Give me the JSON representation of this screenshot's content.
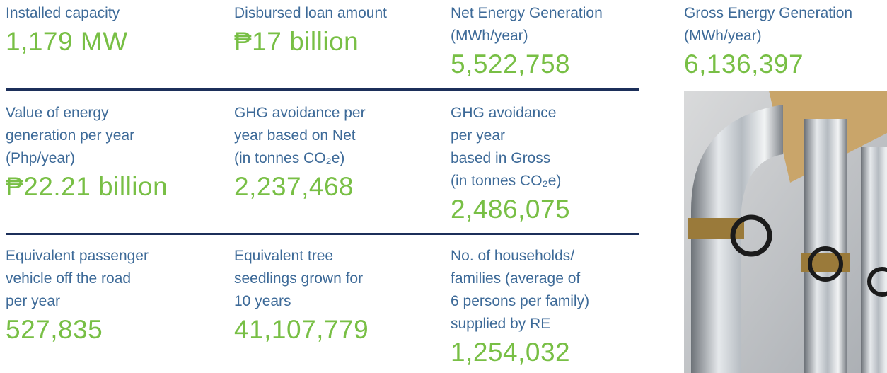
{
  "rows": [
    [
      {
        "label": [
          "Installed capacity"
        ],
        "value": "1,179 MW"
      },
      {
        "label": [
          "Disbursed loan amount"
        ],
        "value": "₱17 billion"
      },
      {
        "label": [
          "Net Energy Generation",
          "(MWh/year)"
        ],
        "value": "5,522,758"
      },
      {
        "label": [
          "Gross Energy Generation",
          "(MWh/year)"
        ],
        "value": "6,136,397"
      }
    ],
    [
      {
        "label": [
          "Value of energy",
          "generation per year",
          "(Php/year)"
        ],
        "value": "₱22.21 billion"
      },
      {
        "label": [
          "GHG avoidance per",
          "year based on Net",
          "(in tonnes CO₂e)"
        ],
        "value": "2,237,468"
      },
      {
        "label": [
          "GHG avoidance",
          "per year",
          "based in Gross",
          "(in tonnes CO₂e)"
        ],
        "value": "2,486,075"
      }
    ],
    [
      {
        "label": [
          "Equivalent passenger",
          "vehicle off the road",
          "per year"
        ],
        "value": "527,835"
      },
      {
        "label": [
          "Equivalent tree",
          "seedlings grown for",
          "10 years"
        ],
        "value": "41,107,779"
      },
      {
        "label": [
          "No. of households/",
          "families (average of",
          "6 persons per family)",
          "supplied by RE"
        ],
        "value": "1,254,032"
      }
    ]
  ]
}
